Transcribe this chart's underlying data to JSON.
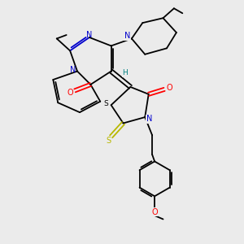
{
  "background_color": "#ebebeb",
  "figsize": [
    3.0,
    3.0
  ],
  "dpi": 100,
  "colors": {
    "C": "#000000",
    "N": "#0000cc",
    "O": "#ff0000",
    "S": "#b8b800",
    "H": "#008080"
  },
  "lw": 1.3
}
